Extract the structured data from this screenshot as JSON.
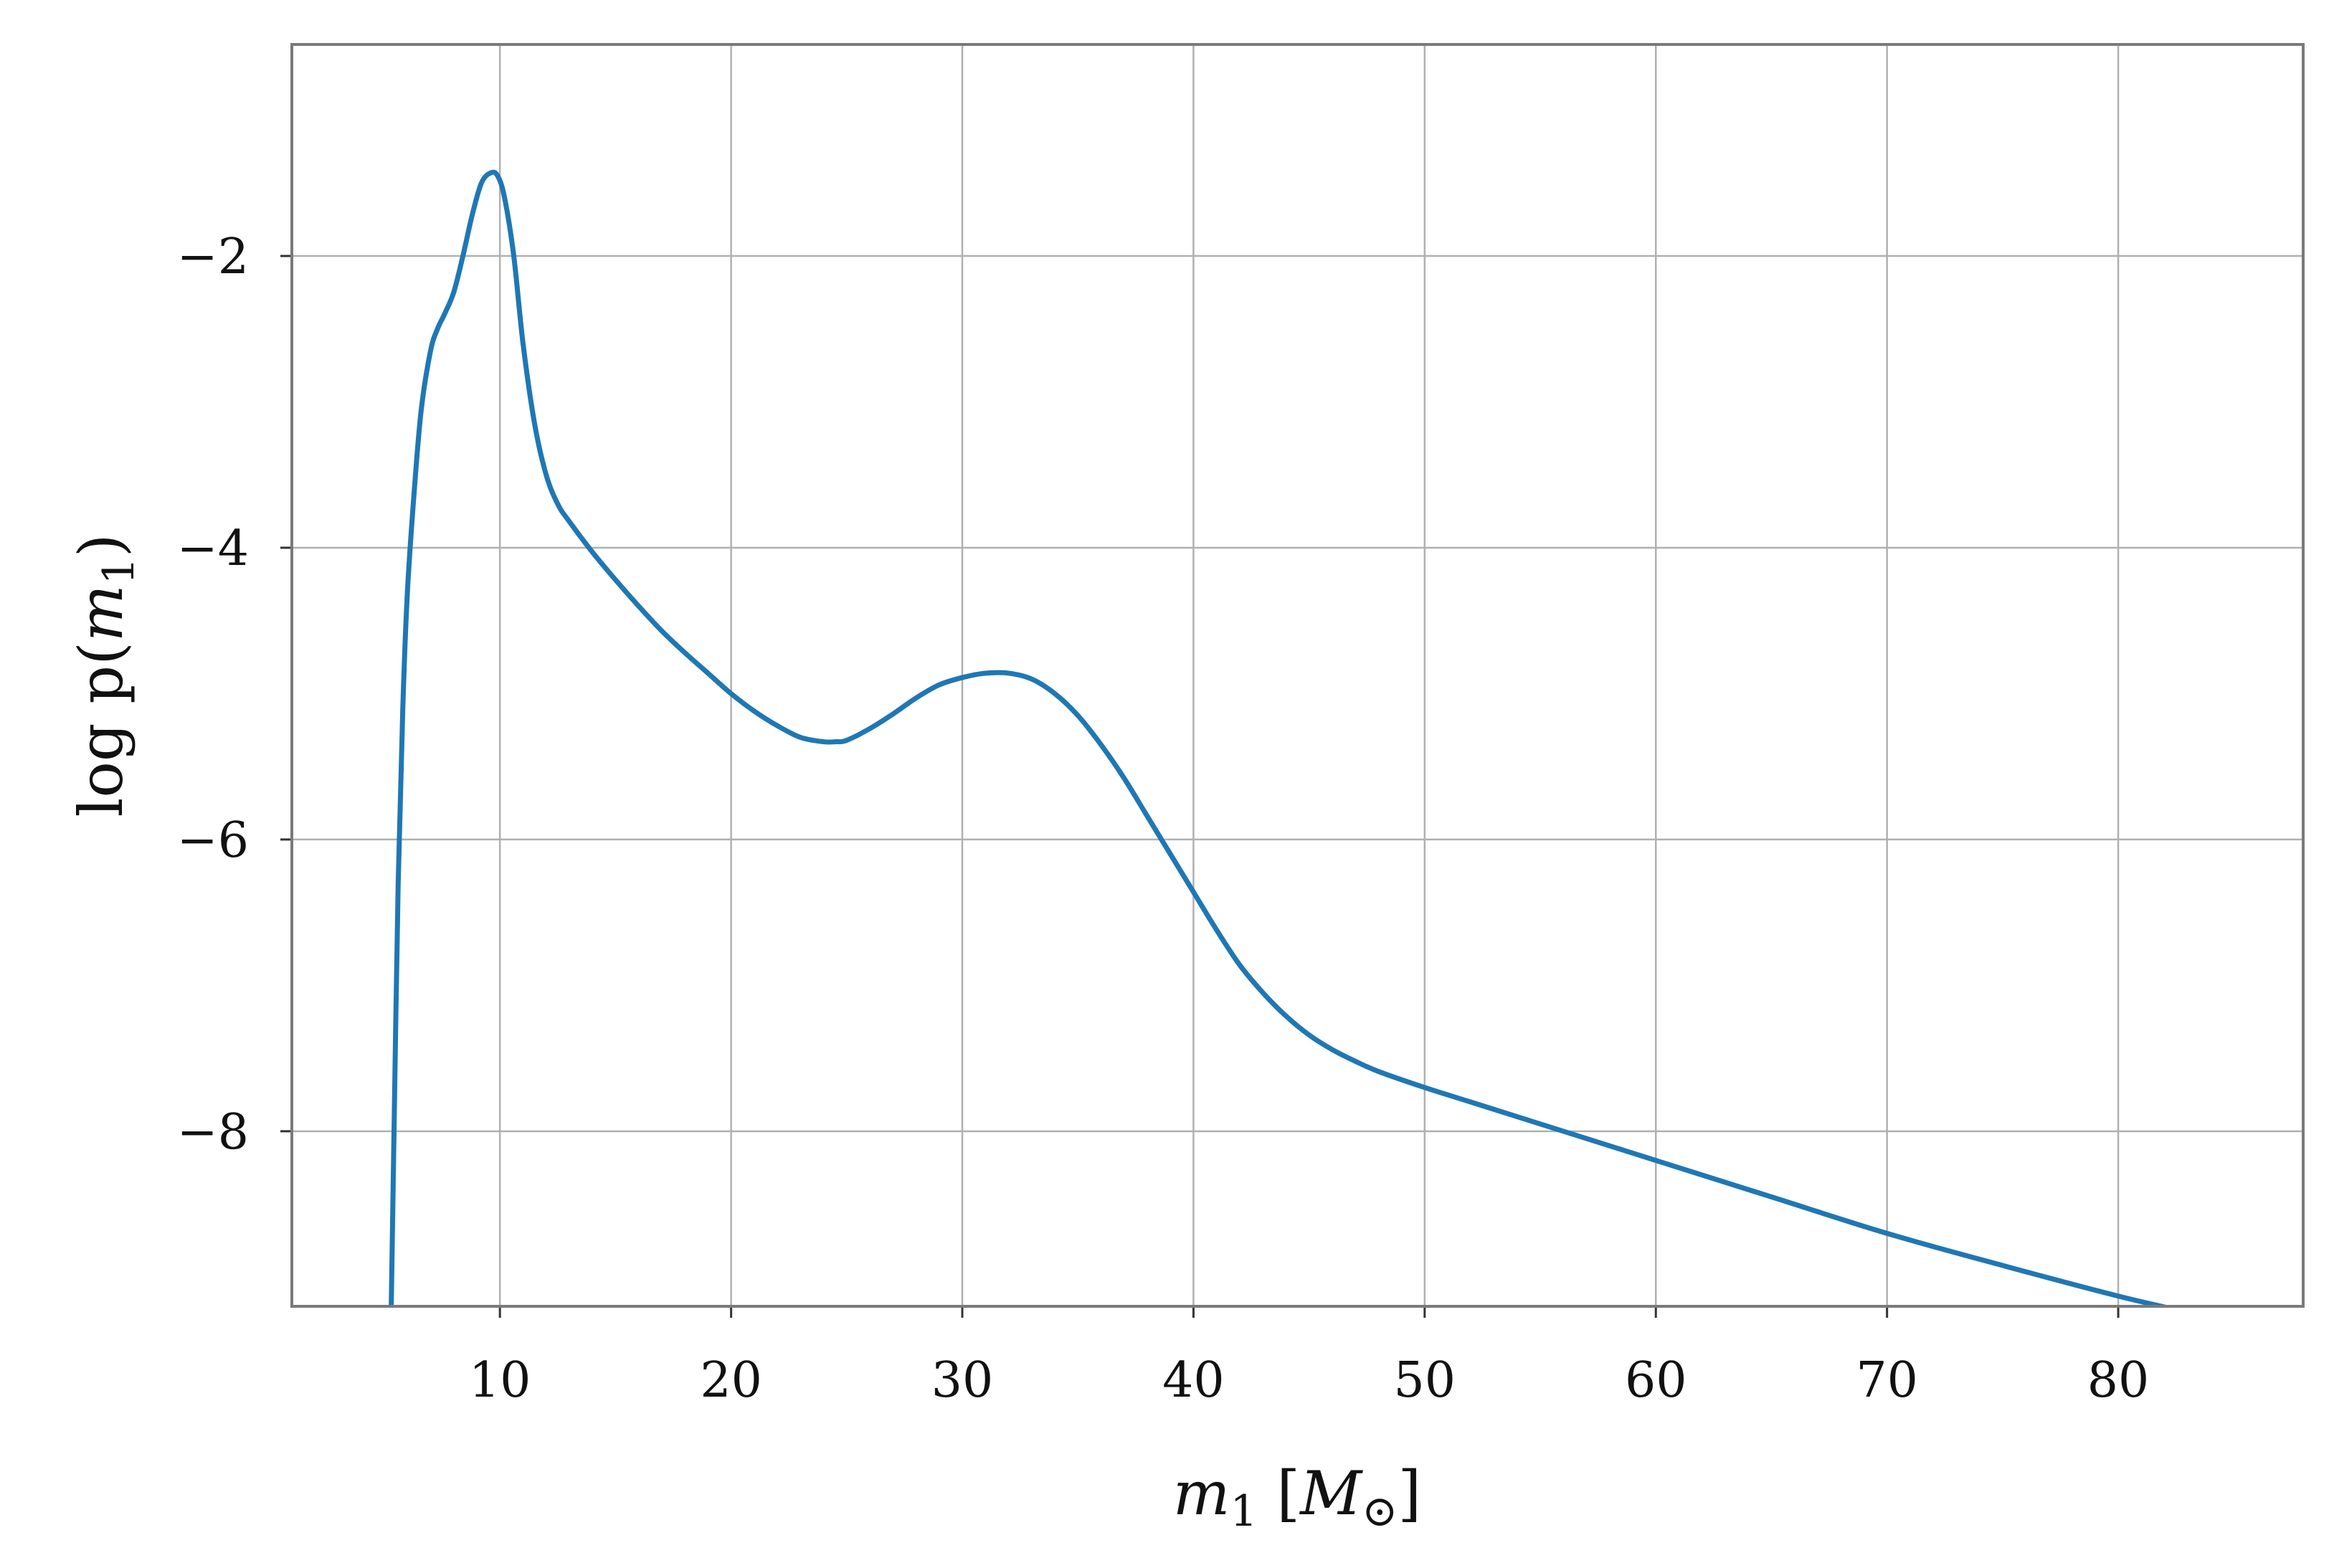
{
  "chart_data": {
    "type": "line",
    "xlabel": "m1 [M⊙]",
    "ylabel": "log p(m1)",
    "xlim": [
      1,
      88
    ],
    "ylim": [
      -9.2,
      -0.55
    ],
    "xticks": [
      10,
      20,
      30,
      40,
      50,
      60,
      70,
      80
    ],
    "xtick_labels": [
      "10",
      "20",
      "30",
      "40",
      "50",
      "60",
      "70",
      "80"
    ],
    "yticks": [
      -2,
      -4,
      -6,
      -8
    ],
    "ytick_labels": [
      "−2",
      "−4",
      "−6",
      "−8"
    ],
    "grid": true,
    "series": [
      {
        "color": "#1f77b4",
        "x": [
          5.3,
          5.4,
          5.6,
          5.8,
          6.0,
          6.3,
          6.6,
          7.0,
          7.3,
          7.6,
          8.0,
          8.4,
          8.8,
          9.2,
          9.6,
          9.9,
          10.2,
          10.6,
          11.0,
          11.5,
          12.0,
          12.5,
          13.0,
          14.0,
          15.0,
          16.0,
          17.0,
          18.0,
          19.0,
          20.0,
          21.0,
          22.0,
          23.0,
          24.0,
          24.5,
          25.0,
          26.0,
          27.0,
          28.0,
          29.0,
          30.0,
          31.0,
          32.0,
          33.0,
          34.0,
          35.0,
          36.0,
          37.0,
          38.0,
          39.0,
          40.0,
          41.0,
          42.0,
          43.0,
          44.0,
          45.0,
          46.0,
          47.0,
          48.0,
          50.0,
          52.0,
          55.0,
          60.0,
          65.0,
          70.0,
          75.0,
          80.0,
          83.0
        ],
        "y": [
          -9.2,
          -8.2,
          -6.3,
          -5.1,
          -4.3,
          -3.6,
          -3.05,
          -2.65,
          -2.5,
          -2.4,
          -2.25,
          -2.0,
          -1.72,
          -1.5,
          -1.43,
          -1.45,
          -1.6,
          -2.0,
          -2.6,
          -3.15,
          -3.5,
          -3.7,
          -3.82,
          -4.03,
          -4.22,
          -4.4,
          -4.57,
          -4.72,
          -4.86,
          -5.0,
          -5.12,
          -5.22,
          -5.3,
          -5.33,
          -5.33,
          -5.32,
          -5.24,
          -5.14,
          -5.03,
          -4.94,
          -4.89,
          -4.86,
          -4.86,
          -4.9,
          -5.0,
          -5.15,
          -5.35,
          -5.58,
          -5.84,
          -6.1,
          -6.36,
          -6.62,
          -6.86,
          -7.05,
          -7.21,
          -7.34,
          -7.44,
          -7.52,
          -7.59,
          -7.7,
          -7.8,
          -7.95,
          -8.2,
          -8.45,
          -8.7,
          -8.92,
          -9.13,
          -9.24
        ]
      }
    ]
  }
}
